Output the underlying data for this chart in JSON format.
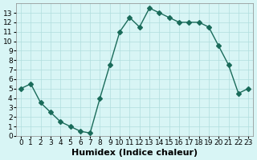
{
  "x": [
    0,
    1,
    2,
    3,
    4,
    5,
    6,
    7,
    8,
    9,
    10,
    11,
    12,
    13,
    14,
    15,
    16,
    17,
    18,
    19,
    20,
    21,
    22,
    23
  ],
  "y": [
    5,
    5.5,
    3.5,
    2.5,
    1.5,
    1,
    0.5,
    0.3,
    4,
    7.5,
    11,
    12.5,
    11.5,
    13.5,
    13,
    12.5,
    12,
    12,
    12,
    11.5,
    9.5,
    7.5,
    4.5,
    5
  ],
  "line_color": "#1a6b5a",
  "marker": "D",
  "marker_size": 3,
  "bg_color": "#d8f5f5",
  "grid_color": "#b0dede",
  "xlabel": "Humidex (Indice chaleur)",
  "xlim": [
    -0.5,
    23.5
  ],
  "ylim": [
    0,
    14
  ],
  "yticks": [
    0,
    1,
    2,
    3,
    4,
    5,
    6,
    7,
    8,
    9,
    10,
    11,
    12,
    13
  ],
  "xticks": [
    0,
    1,
    2,
    3,
    4,
    5,
    6,
    7,
    8,
    9,
    10,
    11,
    12,
    13,
    14,
    15,
    16,
    17,
    18,
    19,
    20,
    21,
    22,
    23
  ],
  "tick_fontsize": 6.5,
  "xlabel_fontsize": 8
}
